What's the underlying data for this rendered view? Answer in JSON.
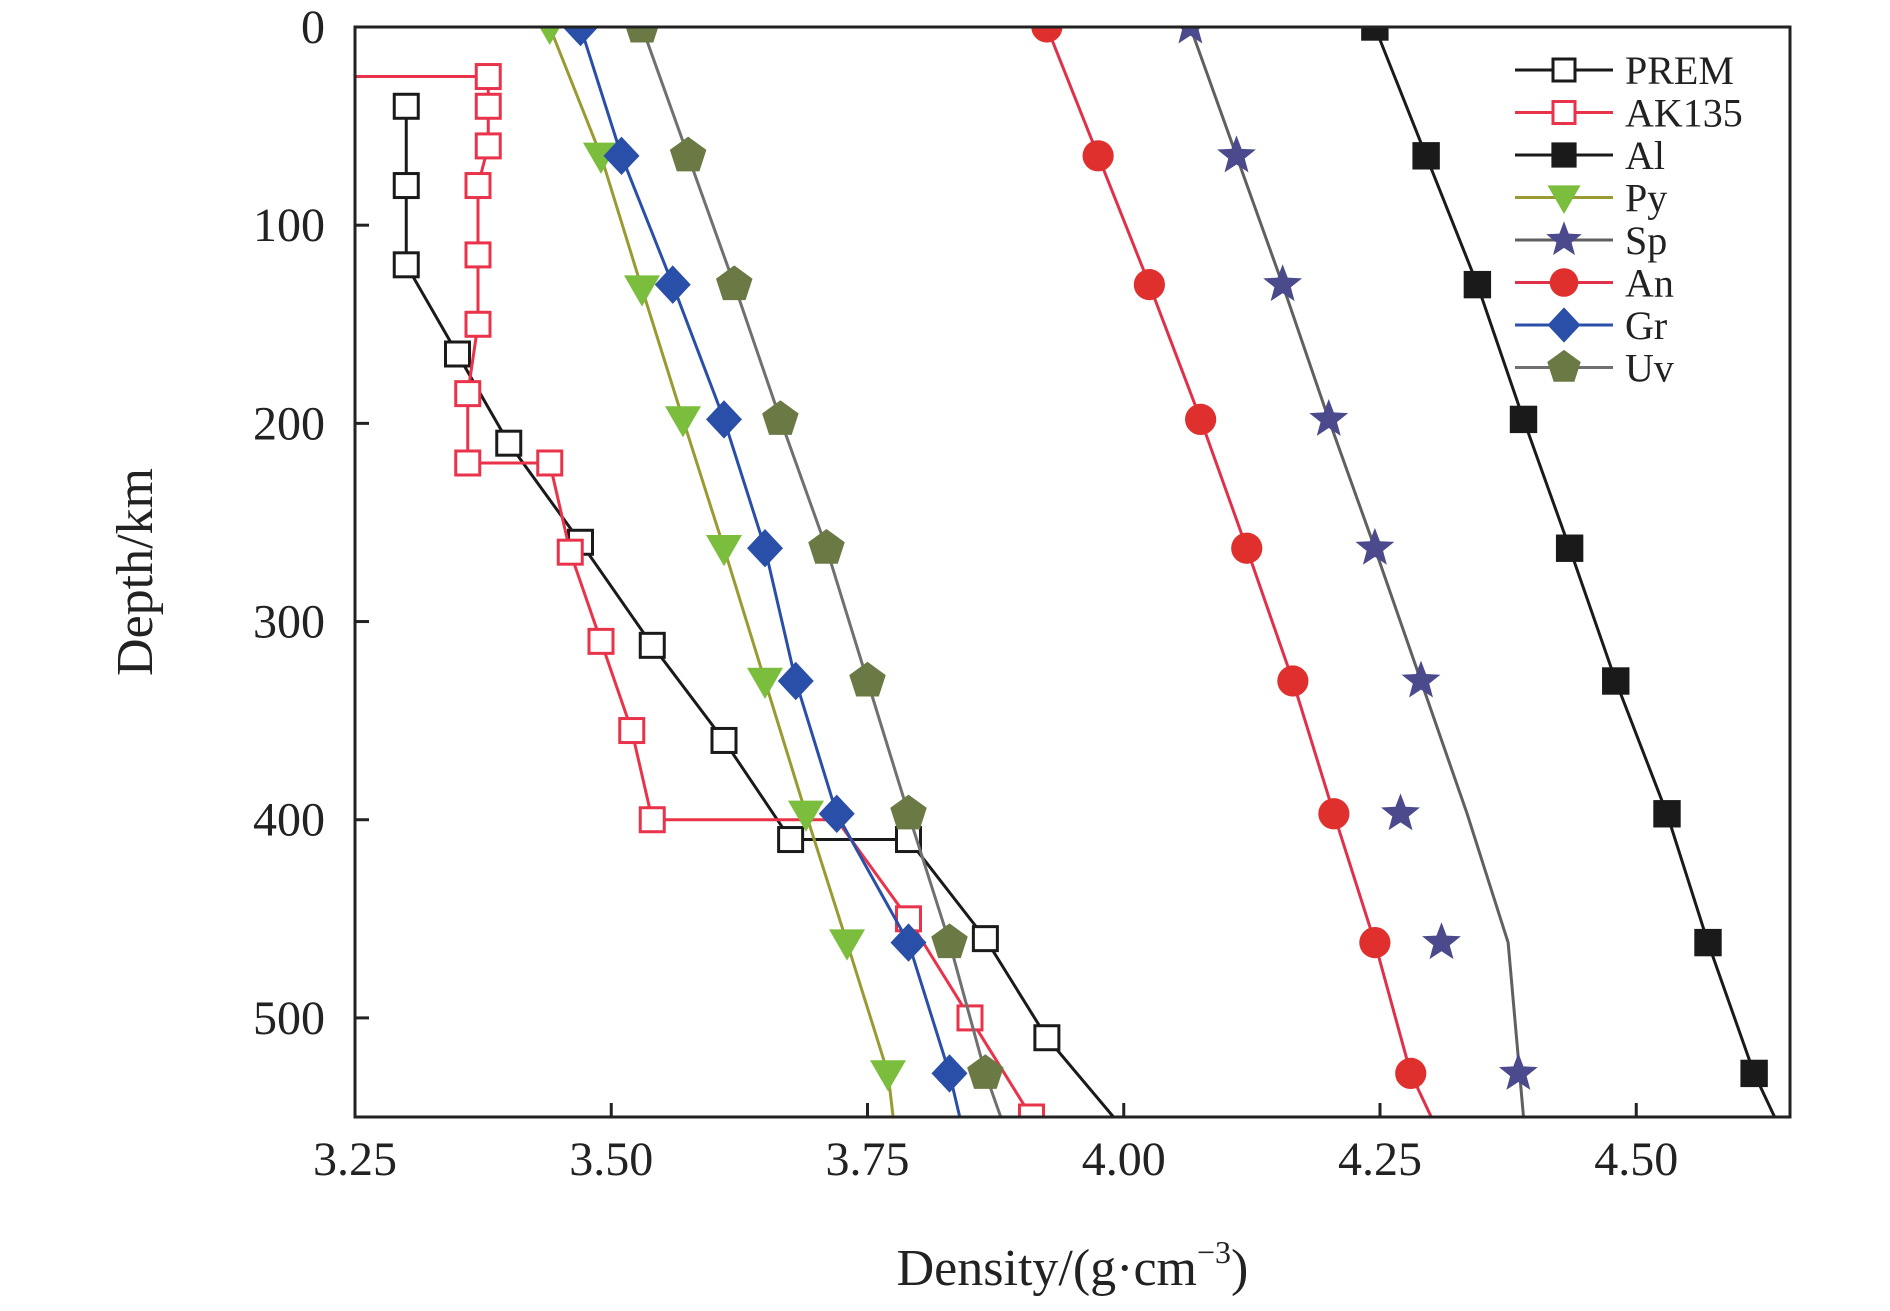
{
  "chart_data": {
    "type": "line",
    "title": "",
    "xlabel": "Density/(g·cm",
    "xlabel_sup": "−3",
    "xlabel_close": ")",
    "ylabel": "Depth/km",
    "xlim": [
      3.25,
      4.65
    ],
    "ylim": [
      0,
      550
    ],
    "y_inverted": true,
    "x_ticks": [
      3.25,
      3.5,
      3.75,
      4.0,
      4.25,
      4.5
    ],
    "x_tick_labels": [
      "3.25",
      "3.50",
      "3.75",
      "4.00",
      "4.25",
      "4.50"
    ],
    "y_ticks": [
      0,
      100,
      200,
      300,
      400,
      500
    ],
    "y_tick_labels": [
      "0",
      "100",
      "200",
      "300",
      "400",
      "500"
    ],
    "legend_position": "top-right",
    "series": [
      {
        "name": "PREM",
        "color": "#1a1a1a",
        "marker": "square-open",
        "x": [
          3.3,
          3.3,
          3.3,
          3.3,
          3.35,
          3.4,
          3.47,
          3.54,
          3.61,
          3.675,
          3.79,
          3.865,
          3.925,
          3.99
        ],
        "y": [
          40,
          40,
          80,
          120,
          165,
          210,
          260,
          312,
          360,
          410,
          410,
          460,
          510,
          550
        ],
        "marked": [
          false,
          true,
          true,
          true,
          true,
          true,
          true,
          true,
          true,
          true,
          true,
          true,
          true,
          false
        ]
      },
      {
        "name": "AK135",
        "color": "#e8334a",
        "marker": "square-open",
        "x": [
          3.25,
          3.38,
          3.38,
          3.38,
          3.37,
          3.37,
          3.37,
          3.36,
          3.36,
          3.44,
          3.46,
          3.49,
          3.52,
          3.54,
          3.72,
          3.79,
          3.85,
          3.91
        ],
        "y": [
          25,
          25,
          40,
          60,
          80,
          115,
          150,
          185,
          220,
          220,
          265,
          310,
          355,
          400,
          400,
          450,
          500,
          550
        ],
        "marked": [
          false,
          true,
          true,
          true,
          true,
          true,
          true,
          true,
          true,
          true,
          true,
          true,
          true,
          true,
          false,
          true,
          true,
          true
        ]
      },
      {
        "name": "Al",
        "color": "#1a1a1a",
        "marker": "square-filled",
        "x": [
          4.245,
          4.295,
          4.345,
          4.39,
          4.435,
          4.48,
          4.53,
          4.57,
          4.615,
          4.635
        ],
        "y": [
          0,
          65,
          130,
          198,
          263,
          330,
          397,
          462,
          528,
          550
        ],
        "marked": [
          true,
          true,
          true,
          true,
          true,
          true,
          true,
          true,
          true,
          false
        ]
      },
      {
        "name": "Py",
        "color": "#7bbd3c",
        "marker": "triangle-down",
        "x": [
          3.44,
          3.44,
          3.49,
          3.53,
          3.57,
          3.61,
          3.65,
          3.69,
          3.73,
          3.77,
          3.775
        ],
        "y": [
          0,
          0,
          65,
          132,
          198,
          263,
          330,
          397,
          462,
          528,
          550
        ],
        "marked": [
          false,
          true,
          true,
          true,
          true,
          true,
          true,
          true,
          true,
          true,
          false
        ],
        "line_color": "#9a9a32"
      },
      {
        "name": "Sp",
        "color": "#4a4a8c",
        "marker": "star",
        "x": [
          4.065,
          4.11,
          4.155,
          4.2,
          4.245,
          4.29,
          4.335,
          4.375,
          4.39
        ],
        "y": [
          0,
          65,
          130,
          198,
          263,
          330,
          397,
          462,
          550
        ],
        "markers_x": [
          4.065,
          4.11,
          4.155,
          4.2,
          4.245,
          4.29,
          4.27,
          4.31,
          4.385
        ],
        "markers_y": [
          0,
          65,
          130,
          198,
          263,
          330,
          397,
          462,
          528
        ],
        "line_color": "#606060"
      },
      {
        "name": "An",
        "color": "#e0302e",
        "marker": "circle",
        "x": [
          3.925,
          3.925,
          3.975,
          4.025,
          4.075,
          4.12,
          4.165,
          4.205,
          4.245,
          4.28,
          4.3
        ],
        "y": [
          0,
          0,
          65,
          130,
          198,
          263,
          330,
          397,
          462,
          528,
          550
        ],
        "marked": [
          false,
          true,
          true,
          true,
          true,
          true,
          true,
          true,
          true,
          true,
          false
        ],
        "line_color": "#e0304a"
      },
      {
        "name": "Gr",
        "color": "#2a4fa8",
        "marker": "diamond",
        "x": [
          3.47,
          3.47,
          3.51,
          3.56,
          3.61,
          3.65,
          3.68,
          3.72,
          3.79,
          3.83,
          3.84
        ],
        "y": [
          0,
          0,
          65,
          130,
          198,
          263,
          330,
          397,
          462,
          528,
          550
        ],
        "marked": [
          false,
          true,
          true,
          true,
          true,
          true,
          true,
          true,
          true,
          true,
          false
        ]
      },
      {
        "name": "Uv",
        "color": "#6b7a45",
        "marker": "pentagon",
        "x": [
          3.53,
          3.53,
          3.575,
          3.62,
          3.665,
          3.71,
          3.75,
          3.79,
          3.83,
          3.865,
          3.88
        ],
        "y": [
          0,
          0,
          65,
          130,
          198,
          263,
          330,
          397,
          462,
          528,
          550
        ],
        "marked": [
          false,
          true,
          true,
          true,
          true,
          true,
          true,
          true,
          true,
          true,
          false
        ],
        "line_color": "#707070"
      }
    ]
  }
}
